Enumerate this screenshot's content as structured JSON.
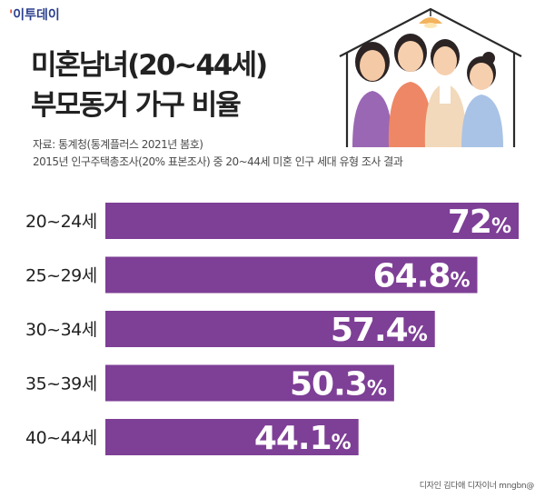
{
  "header": {
    "logo_mark": "'",
    "logo_text": "이투데이",
    "title": "미혼남녀(20~44세)\n부모동거 가구 비율",
    "source_line1": "자료: 통계청(통계플러스 2021년 봄호)",
    "source_line2": "2015년 인구주택총조사(20% 표본조사) 중 20~44세 미혼 인구 세대 유형 조사 결과",
    "credit": "디자인 김다애 디자이너 mngbn@"
  },
  "colors": {
    "bar": "#7e3f96",
    "title": "#222222",
    "logo": "#2b3f8f",
    "logo_mark": "#e14d2a"
  },
  "chart_data": {
    "type": "bar",
    "orientation": "horizontal",
    "categories": [
      "20~24세",
      "25~29세",
      "30~34세",
      "35~39세",
      "40~44세"
    ],
    "values": [
      72,
      64.8,
      57.4,
      50.3,
      44.1
    ],
    "labels": [
      "72",
      "64.8",
      "57.4",
      "50.3",
      "44.1"
    ],
    "unit": "%",
    "title": "미혼남녀(20~44세) 부모동거 가구 비율",
    "xlim": [
      0,
      72
    ],
    "grid": false,
    "legend": "none"
  }
}
